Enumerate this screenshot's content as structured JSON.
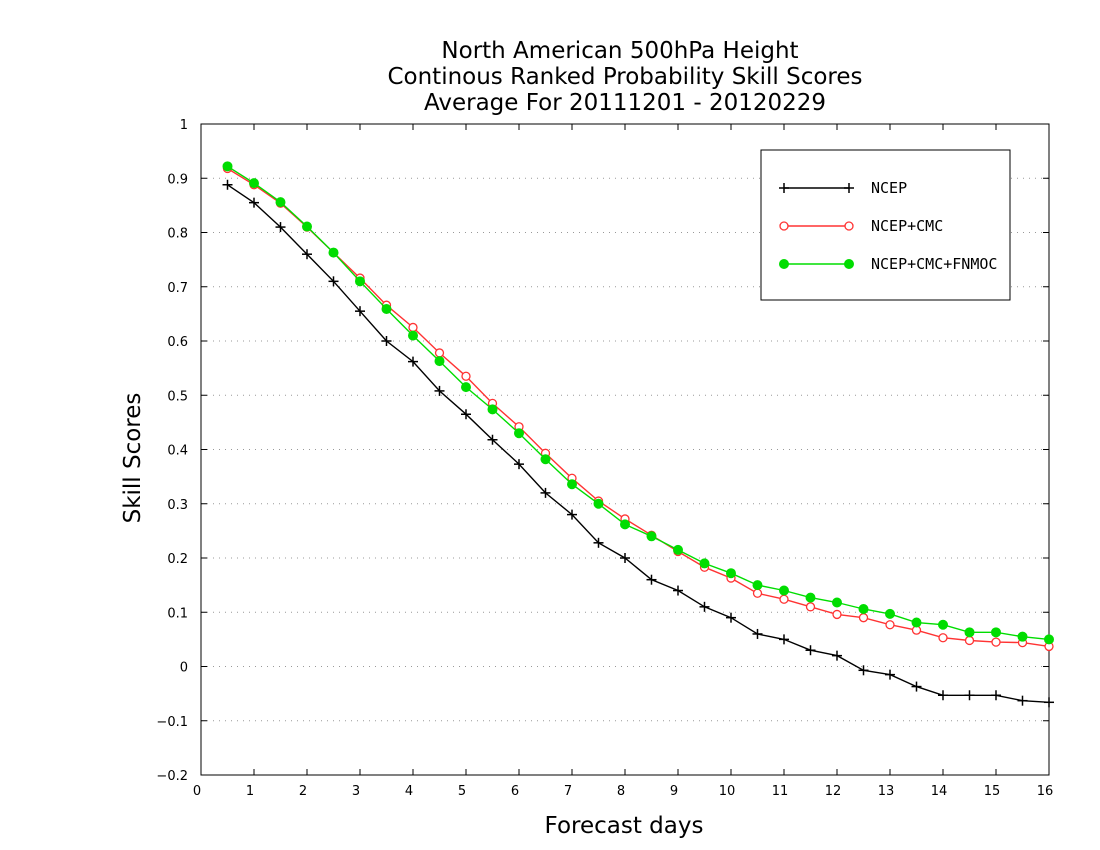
{
  "chart_data": {
    "type": "line",
    "title_lines": [
      "North American 500hPa Height",
      "Continous Ranked Probability Skill Scores",
      "Average For 20111201 - 20120229"
    ],
    "xlabel": "Forecast days",
    "ylabel": "Skill Scores",
    "xlim": [
      0,
      16
    ],
    "ylim": [
      -0.2,
      1
    ],
    "x_ticks": [
      0,
      1,
      2,
      3,
      4,
      5,
      6,
      7,
      8,
      9,
      10,
      11,
      12,
      13,
      14,
      15,
      16
    ],
    "y_ticks": [
      -0.2,
      -0.1,
      0,
      0.1,
      0.2,
      0.3,
      0.4,
      0.5,
      0.6,
      0.7,
      0.8,
      0.9,
      1
    ],
    "grid": "horizontal-dotted",
    "legend_position": "top-right",
    "x": [
      0.5,
      1,
      1.5,
      2,
      2.5,
      3,
      3.5,
      4,
      4.5,
      5,
      5.5,
      6,
      6.5,
      7,
      7.5,
      8,
      8.5,
      9,
      9.5,
      10,
      10.5,
      11,
      11.5,
      12,
      12.5,
      13,
      13.5,
      14,
      14.5,
      15,
      15.5,
      16
    ],
    "series": [
      {
        "name": "NCEP",
        "color": "#000000",
        "marker": "plus",
        "values": [
          0.888,
          0.855,
          0.81,
          0.76,
          0.71,
          0.655,
          0.6,
          0.562,
          0.508,
          0.465,
          0.418,
          0.373,
          0.32,
          0.28,
          0.228,
          0.2,
          0.16,
          0.14,
          0.11,
          0.09,
          0.06,
          0.05,
          0.03,
          0.02,
          -0.007,
          -0.015,
          -0.037,
          -0.053,
          -0.053,
          -0.053,
          -0.063,
          -0.066
        ]
      },
      {
        "name": "NCEP+CMC",
        "color": "#ff3333",
        "marker": "open-circle",
        "values": [
          0.918,
          0.888,
          0.854,
          0.81,
          0.763,
          0.716,
          0.666,
          0.625,
          0.578,
          0.535,
          0.485,
          0.442,
          0.393,
          0.347,
          0.305,
          0.272,
          0.242,
          0.212,
          0.183,
          0.163,
          0.135,
          0.124,
          0.11,
          0.096,
          0.09,
          0.077,
          0.067,
          0.053,
          0.048,
          0.045,
          0.044,
          0.037
        ]
      },
      {
        "name": "NCEP+CMC+FNMOC",
        "color": "#00dd00",
        "marker": "filled-circle",
        "values": [
          0.922,
          0.891,
          0.856,
          0.811,
          0.763,
          0.71,
          0.659,
          0.61,
          0.563,
          0.515,
          0.474,
          0.43,
          0.382,
          0.336,
          0.3,
          0.262,
          0.24,
          0.215,
          0.19,
          0.172,
          0.15,
          0.14,
          0.127,
          0.118,
          0.106,
          0.097,
          0.081,
          0.077,
          0.063,
          0.063,
          0.055,
          0.05
        ]
      }
    ]
  }
}
